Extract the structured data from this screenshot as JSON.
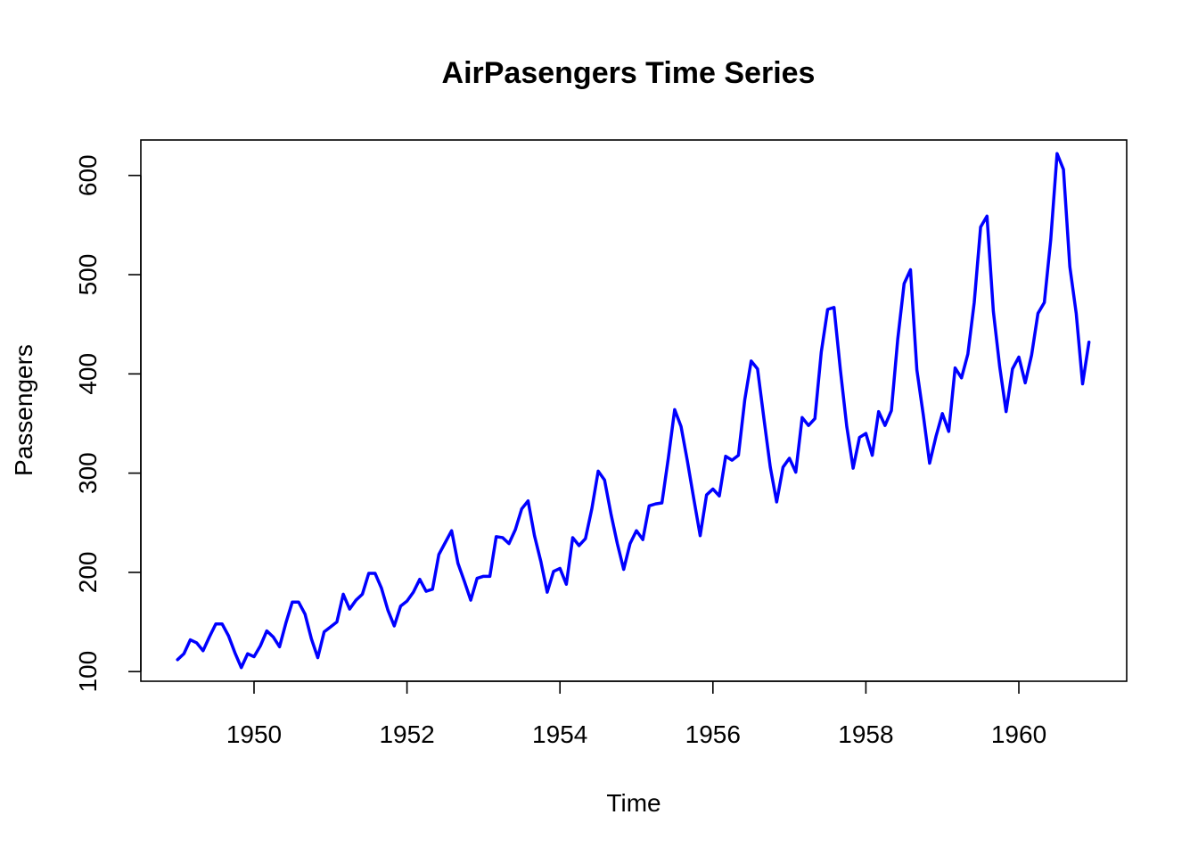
{
  "chart_data": {
    "type": "line",
    "title": "AirPasengers Time Series",
    "xlabel": "Time",
    "ylabel": "Passengers",
    "xlim": [
      1948.52,
      1961.41
    ],
    "ylim": [
      90.28,
      635.72
    ],
    "x_ticks": [
      1950,
      1952,
      1954,
      1956,
      1958,
      1960
    ],
    "x_tick_labels": [
      "1950",
      "1952",
      "1954",
      "1956",
      "1958",
      "1960"
    ],
    "y_ticks": [
      100,
      200,
      300,
      400,
      500,
      600
    ],
    "y_tick_labels": [
      "100",
      "200",
      "300",
      "400",
      "500",
      "600"
    ],
    "grid": false,
    "legend": "none",
    "x_start": 1949.0,
    "x_step": 0.0833333,
    "series": [
      {
        "color": "#0000ff",
        "values": [
          112,
          118,
          132,
          129,
          121,
          135,
          148,
          148,
          136,
          119,
          104,
          118,
          115,
          126,
          141,
          135,
          125,
          149,
          170,
          170,
          158,
          133,
          114,
          140,
          145,
          150,
          178,
          163,
          172,
          178,
          199,
          199,
          184,
          162,
          146,
          166,
          171,
          180,
          193,
          181,
          183,
          218,
          230,
          242,
          209,
          191,
          172,
          194,
          196,
          196,
          236,
          235,
          229,
          243,
          264,
          272,
          237,
          211,
          180,
          201,
          204,
          188,
          235,
          227,
          234,
          264,
          302,
          293,
          259,
          229,
          203,
          229,
          242,
          233,
          267,
          269,
          270,
          315,
          364,
          347,
          312,
          274,
          237,
          278,
          284,
          277,
          317,
          313,
          318,
          374,
          413,
          405,
          355,
          306,
          271,
          306,
          315,
          301,
          356,
          348,
          355,
          422,
          465,
          467,
          404,
          347,
          305,
          336,
          340,
          318,
          362,
          348,
          363,
          435,
          491,
          505,
          404,
          359,
          310,
          337,
          360,
          342,
          406,
          396,
          420,
          472,
          548,
          559,
          463,
          407,
          362,
          405,
          417,
          391,
          419,
          461,
          472,
          535,
          622,
          606,
          508,
          461,
          390,
          432
        ]
      }
    ]
  }
}
